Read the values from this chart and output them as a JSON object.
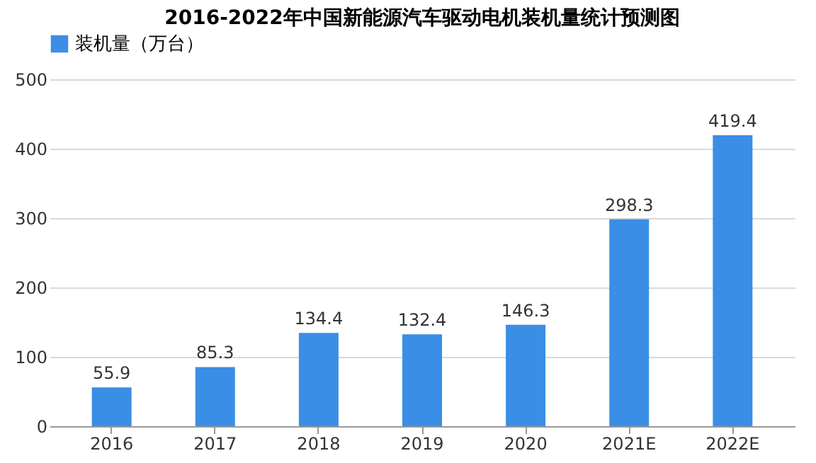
{
  "chart_data": {
    "type": "bar",
    "title": "2016-2022年中国新能源汽车驱动电机装机量统计预测图",
    "categories": [
      "2016",
      "2017",
      "2018",
      "2019",
      "2020",
      "2021E",
      "2022E"
    ],
    "series": [
      {
        "name": "装机量（万台）",
        "color": "#3a8ee6",
        "values": [
          55.9,
          85.3,
          134.4,
          132.4,
          146.3,
          298.3,
          419.4
        ]
      }
    ],
    "ylim": [
      0,
      500
    ],
    "yticks": [
      0,
      100,
      200,
      300,
      400,
      500
    ],
    "grid": "y",
    "legend": "top",
    "data_labels": true
  }
}
